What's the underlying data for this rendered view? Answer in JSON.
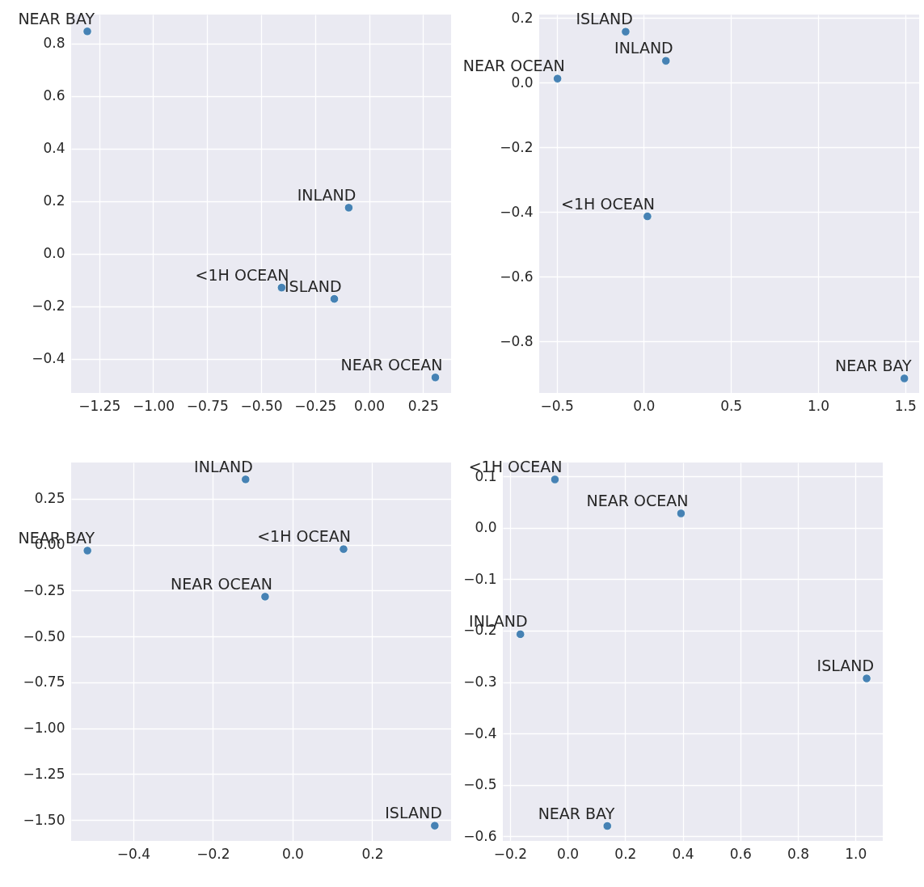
{
  "chart_data": [
    {
      "type": "scatter",
      "marker": "circle",
      "grid": true,
      "legend": false,
      "xlim": [
        -1.38,
        0.38
      ],
      "ylim": [
        -0.53,
        0.91
      ],
      "xticks": [
        -1.25,
        {
          "value": -1.0,
          "label": "−1.00"
        },
        -0.75,
        {
          "value": -0.5,
          "label": "−0.50"
        },
        -0.25,
        {
          "value": 0,
          "label": "0.00"
        },
        0.25
      ],
      "yticks": [
        -0.4,
        -0.2,
        {
          "value": 0,
          "label": "0.0"
        },
        0.2,
        0.4,
        0.6,
        0.8
      ],
      "series": [
        {
          "name": "NEAR BAY",
          "color": "#4682b4",
          "x": [
            -1.305
          ],
          "values": [
            0.846
          ]
        },
        {
          "name": "INLAND",
          "color": "#4682b4",
          "x": [
            -0.094
          ],
          "values": [
            0.175
          ]
        },
        {
          "name": "<1H OCEAN",
          "color": "#4682b4",
          "x": [
            -0.405
          ],
          "values": [
            -0.129
          ]
        },
        {
          "name": "ISLAND",
          "color": "#4682b4",
          "x": [
            -0.161
          ],
          "values": [
            -0.172
          ]
        },
        {
          "name": "NEAR OCEAN",
          "color": "#4682b4",
          "x": [
            0.307
          ],
          "values": [
            -0.471
          ]
        }
      ]
    },
    {
      "type": "scatter",
      "marker": "circle",
      "grid": true,
      "legend": false,
      "xlim": [
        -0.6,
        1.58
      ],
      "ylim": [
        -0.96,
        0.21
      ],
      "xticks": [
        -0.5,
        {
          "value": 0,
          "label": "0.0"
        },
        0.5,
        {
          "value": 1,
          "label": "1.0"
        },
        1.5
      ],
      "yticks": [
        -0.8,
        -0.6,
        -0.4,
        -0.2,
        {
          "value": 0,
          "label": "0.0"
        },
        0.2
      ],
      "series": [
        {
          "name": "ISLAND",
          "color": "#4682b4",
          "x": [
            -0.104
          ],
          "values": [
            0.157
          ]
        },
        {
          "name": "INLAND",
          "color": "#4682b4",
          "x": [
            0.127
          ],
          "values": [
            0.067
          ]
        },
        {
          "name": "NEAR OCEAN",
          "color": "#4682b4",
          "x": [
            -0.495
          ],
          "values": [
            0.012
          ]
        },
        {
          "name": "<1H OCEAN",
          "color": "#4682b4",
          "x": [
            0.021
          ],
          "values": [
            -0.414
          ]
        },
        {
          "name": "NEAR BAY",
          "color": "#4682b4",
          "x": [
            1.495
          ],
          "values": [
            -0.915
          ]
        }
      ]
    },
    {
      "type": "scatter",
      "marker": "circle",
      "grid": true,
      "legend": false,
      "xlim": [
        -0.556,
        0.398
      ],
      "ylim": [
        -1.614,
        0.448
      ],
      "xticks": [
        -0.4,
        -0.2,
        {
          "value": 0,
          "label": "0.0"
        },
        0.2
      ],
      "yticks": [
        {
          "value": -1.5,
          "label": "−1.50"
        },
        -1.25,
        {
          "value": -1,
          "label": "−1.00"
        },
        -0.75,
        {
          "value": -0.5,
          "label": "−0.50"
        },
        -0.25,
        {
          "value": 0,
          "label": "0.00"
        },
        0.25
      ],
      "series": [
        {
          "name": "INLAND",
          "color": "#4682b4",
          "x": [
            -0.118
          ],
          "values": [
            0.356
          ]
        },
        {
          "name": "NEAR BAY",
          "color": "#4682b4",
          "x": [
            -0.515
          ],
          "values": [
            -0.032
          ]
        },
        {
          "name": "<1H OCEAN",
          "color": "#4682b4",
          "x": [
            0.128
          ],
          "values": [
            -0.024
          ]
        },
        {
          "name": "NEAR OCEAN",
          "color": "#4682b4",
          "x": [
            -0.069
          ],
          "values": [
            -0.283
          ]
        },
        {
          "name": "ISLAND",
          "color": "#4682b4",
          "x": [
            0.357
          ],
          "values": [
            -1.531
          ]
        }
      ]
    },
    {
      "type": "scatter",
      "marker": "circle",
      "grid": true,
      "legend": false,
      "xlim": [
        -0.225,
        1.095
      ],
      "ylim": [
        -0.609,
        0.127
      ],
      "xticks": [
        -0.2,
        {
          "value": 0,
          "label": "0.0"
        },
        0.2,
        0.4,
        0.6,
        0.8,
        {
          "value": 1,
          "label": "1.0"
        }
      ],
      "yticks": [
        -0.6,
        -0.5,
        -0.4,
        -0.3,
        -0.2,
        -0.1,
        {
          "value": 0,
          "label": "0.0"
        },
        0.1
      ],
      "series": [
        {
          "name": "<1H OCEAN",
          "color": "#4682b4",
          "x": [
            -0.044
          ],
          "values": [
            0.094
          ]
        },
        {
          "name": "NEAR OCEAN",
          "color": "#4682b4",
          "x": [
            0.394
          ],
          "values": [
            0.028
          ]
        },
        {
          "name": "INLAND",
          "color": "#4682b4",
          "x": [
            -0.164
          ],
          "values": [
            -0.207
          ]
        },
        {
          "name": "ISLAND",
          "color": "#4682b4",
          "x": [
            1.039
          ],
          "values": [
            -0.293
          ]
        },
        {
          "name": "NEAR BAY",
          "color": "#4682b4",
          "x": [
            0.138
          ],
          "values": [
            -0.58
          ]
        }
      ]
    }
  ]
}
